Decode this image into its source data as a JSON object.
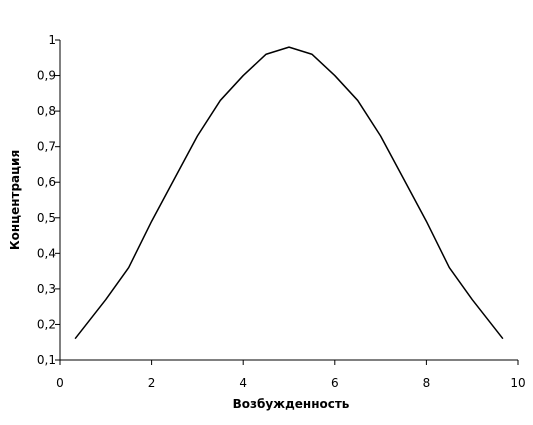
{
  "chart_data": {
    "type": "line",
    "x_label": "Возбужденность",
    "y_label": "Концентрация",
    "x": [
      0.33,
      1,
      1.5,
      2,
      2.5,
      3,
      3.5,
      4,
      4.5,
      5,
      5.5,
      6,
      6.5,
      7,
      7.5,
      8,
      8.5,
      9,
      9.67
    ],
    "series": [
      {
        "color": "#000000",
        "values": [
          0.16,
          0.27,
          0.36,
          0.49,
          0.61,
          0.73,
          0.83,
          0.9,
          0.96,
          0.98,
          0.96,
          0.9,
          0.83,
          0.73,
          0.61,
          0.49,
          0.36,
          0.27,
          0.16
        ]
      }
    ],
    "xlim": [
      0,
      10
    ],
    "xticks": [
      0,
      2,
      4,
      6,
      8,
      10
    ],
    "ylim": [
      0.1,
      1
    ],
    "yticks": [
      {
        "value": 0.1,
        "label": "0,1"
      },
      {
        "value": 0.2,
        "label": "0,2"
      },
      {
        "value": 0.3,
        "label": "0,3"
      },
      {
        "value": 0.4,
        "label": "0,4"
      },
      {
        "value": 0.5,
        "label": "0,5"
      },
      {
        "value": 0.6,
        "label": "0,6"
      },
      {
        "value": 0.7,
        "label": "0,7"
      },
      {
        "value": 0.8,
        "label": "0,8"
      },
      {
        "value": 0.9,
        "label": "0,9"
      },
      1
    ]
  }
}
